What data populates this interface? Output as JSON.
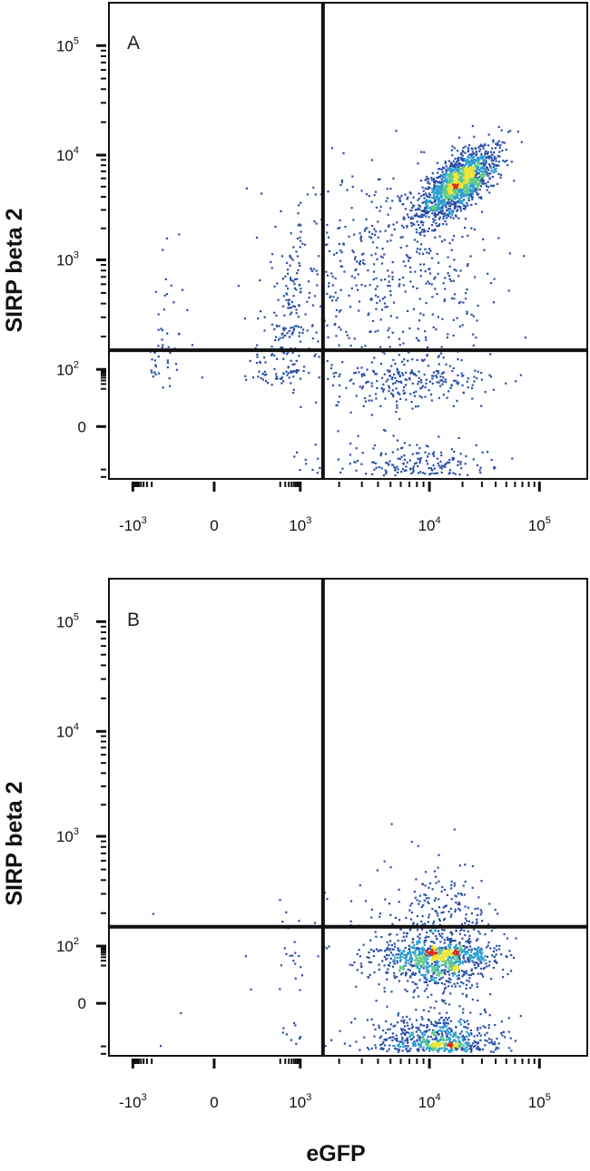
{
  "chart_data": [
    {
      "type": "scatter",
      "panel_label": "A",
      "xlabel": "",
      "ylabel": "SIRP beta 2",
      "x_scale": "biexponential",
      "y_scale": "biexponential",
      "x_ticks": [
        {
          "base": "-10",
          "exp": "3"
        },
        {
          "base": "0",
          "exp": ""
        },
        {
          "base": "10",
          "exp": "3"
        },
        {
          "base": "10",
          "exp": "4"
        },
        {
          "base": "10",
          "exp": "5"
        }
      ],
      "y_ticks": [
        {
          "base": "0",
          "exp": ""
        },
        {
          "base": "10",
          "exp": "2"
        },
        {
          "base": "10",
          "exp": "3"
        },
        {
          "base": "10",
          "exp": "4"
        },
        {
          "base": "10",
          "exp": "5"
        }
      ],
      "gate": {
        "x": 1500,
        "y": 150
      },
      "populations": [
        {
          "cx": 18000,
          "cy": 5500,
          "sx": 0.2,
          "sy": 0.2,
          "count": 1500,
          "role": "main"
        },
        {
          "cx": 5000,
          "cy": 1200,
          "sx": 0.4,
          "sy": 0.4,
          "count": 350,
          "role": "trail"
        },
        {
          "cx": 600,
          "cy": 350,
          "sx": 0.45,
          "sy": 0.4,
          "count": 200,
          "role": "left-upper"
        },
        {
          "cx": 200,
          "cy": 120,
          "sx": 0.45,
          "sy": 0.3,
          "count": 100,
          "role": "left-lower"
        },
        {
          "cx": 7000,
          "cy": 60,
          "sx": 0.35,
          "sy": 0.45,
          "count": 500,
          "role": "lower-right"
        }
      ],
      "grid": false
    },
    {
      "type": "scatter",
      "panel_label": "B",
      "xlabel": "eGFP",
      "ylabel": "SIRP beta 2",
      "x_scale": "biexponential",
      "y_scale": "biexponential",
      "x_ticks": [
        {
          "base": "-10",
          "exp": "3"
        },
        {
          "base": "0",
          "exp": ""
        },
        {
          "base": "10",
          "exp": "3"
        },
        {
          "base": "10",
          "exp": "4"
        },
        {
          "base": "10",
          "exp": "5"
        }
      ],
      "y_ticks": [
        {
          "base": "0",
          "exp": ""
        },
        {
          "base": "10",
          "exp": "2"
        },
        {
          "base": "10",
          "exp": "3"
        },
        {
          "base": "10",
          "exp": "4"
        },
        {
          "base": "10",
          "exp": "5"
        }
      ],
      "gate": {
        "x": 1500,
        "y": 150
      },
      "populations": [
        {
          "cx": 12000,
          "cy": 60,
          "sx": 0.25,
          "sy": 0.4,
          "count": 1800,
          "role": "main"
        },
        {
          "cx": 700,
          "cy": 60,
          "sx": 0.4,
          "sy": 0.4,
          "count": 50,
          "role": "left"
        }
      ],
      "grid": false
    }
  ],
  "colors": {
    "sparse": "#2a4ea8",
    "low": "#2f9fd0",
    "mid": "#62c98a",
    "high": "#eee536",
    "peak": "#d83020",
    "gate": "#111111",
    "frame": "#111111"
  }
}
